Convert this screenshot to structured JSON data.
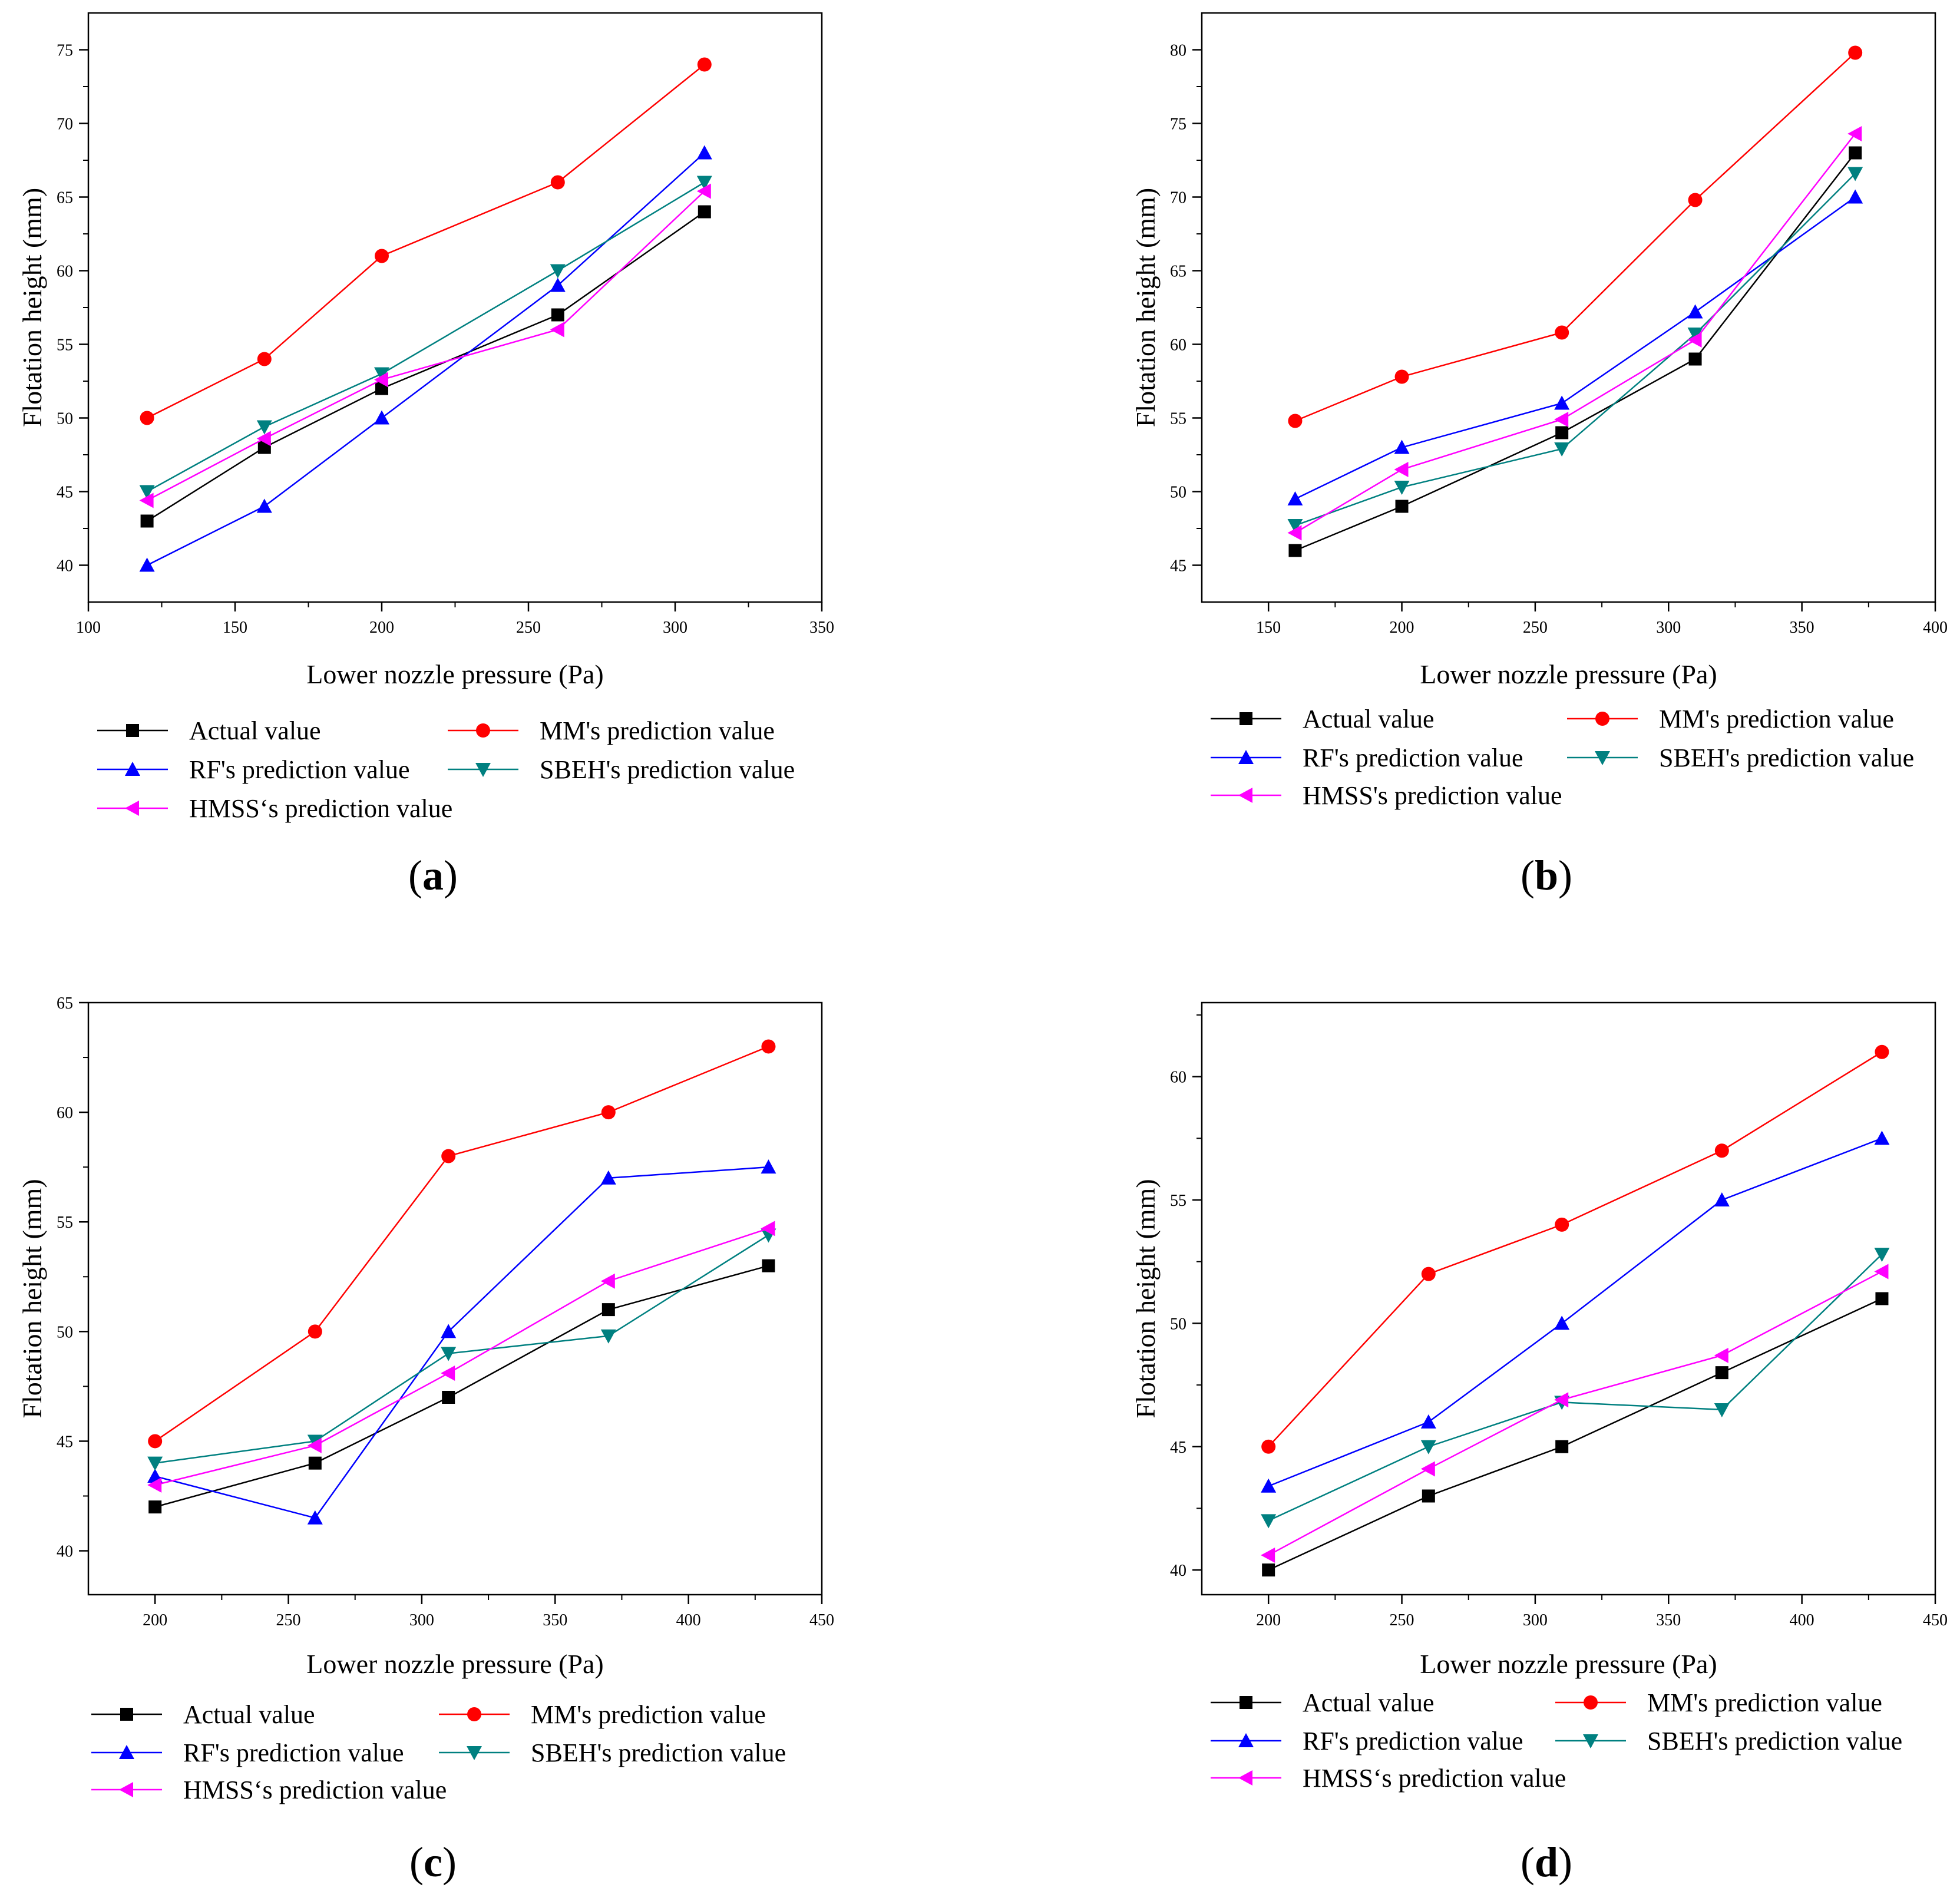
{
  "chart_data": [
    {
      "type": "line",
      "panel_label": "(a)",
      "panel_letter": "a",
      "xlabel": "Lower nozzle pressure (Pa)",
      "ylabel": "Flotation height (mm)",
      "xlim": [
        100,
        350
      ],
      "ylim": [
        37.5,
        77.5
      ],
      "xticks": [
        100,
        150,
        200,
        250,
        300,
        350
      ],
      "yticks": [
        40,
        45,
        50,
        55,
        60,
        65,
        70,
        75
      ],
      "x": [
        120,
        160,
        200,
        260,
        310
      ],
      "series": [
        {
          "name": "Actual value",
          "values": [
            43,
            48,
            52,
            57,
            64
          ]
        },
        {
          "name": "MM's prediction value",
          "values": [
            50,
            54,
            61,
            66,
            74
          ]
        },
        {
          "name": "RF's prediction value",
          "values": [
            40,
            44,
            50,
            59,
            68
          ]
        },
        {
          "name": "SBEH's prediction value",
          "values": [
            45,
            49.4,
            53,
            60,
            66
          ]
        },
        {
          "name": "HMSS‘s prediction value",
          "values": [
            44.4,
            48.6,
            52.6,
            56,
            65.4
          ]
        }
      ]
    },
    {
      "type": "line",
      "panel_label": "(b)",
      "panel_letter": "b",
      "xlabel": "Lower nozzle pressure (Pa)",
      "ylabel": "Flotation height (mm)",
      "xlim": [
        125,
        400
      ],
      "ylim": [
        42.5,
        82.5
      ],
      "xticks": [
        150,
        200,
        250,
        300,
        350,
        400
      ],
      "yticks": [
        45,
        50,
        55,
        60,
        65,
        70,
        75,
        80
      ],
      "x": [
        160,
        200,
        260,
        310,
        370
      ],
      "series": [
        {
          "name": "Actual value",
          "values": [
            46,
            49,
            54,
            59,
            73
          ]
        },
        {
          "name": "MM's prediction value",
          "values": [
            54.8,
            57.8,
            60.8,
            69.8,
            79.8
          ]
        },
        {
          "name": "RF's prediction value",
          "values": [
            49.5,
            53,
            56,
            62.2,
            70
          ]
        },
        {
          "name": "SBEH's prediction value",
          "values": [
            47.7,
            50.3,
            52.9,
            60.7,
            71.6
          ]
        },
        {
          "name": "HMSS's prediction value",
          "values": [
            47.2,
            51.5,
            54.9,
            60.3,
            74.3
          ]
        }
      ]
    },
    {
      "type": "line",
      "panel_label": "(c)",
      "panel_letter": "c",
      "xlabel": "Lower nozzle pressure (Pa)",
      "ylabel": "Flotation height (mm)",
      "xlim": [
        175,
        450
      ],
      "ylim": [
        38,
        65
      ],
      "xticks": [
        200,
        250,
        300,
        350,
        400,
        450
      ],
      "yticks": [
        40,
        45,
        50,
        55,
        60,
        65
      ],
      "x": [
        200,
        260,
        310,
        370,
        430
      ],
      "series": [
        {
          "name": "Actual value",
          "values": [
            42,
            44,
            47,
            51,
            53
          ]
        },
        {
          "name": "MM's prediction value",
          "values": [
            45,
            50,
            58,
            60,
            63
          ]
        },
        {
          "name": "RF's prediction value",
          "values": [
            43.4,
            41.5,
            50,
            57,
            57.5
          ]
        },
        {
          "name": "SBEH's prediction value",
          "values": [
            44,
            45,
            49,
            49.8,
            54.4
          ]
        },
        {
          "name": "HMSS‘s prediction value",
          "values": [
            43,
            44.8,
            48.1,
            52.3,
            54.7
          ]
        }
      ]
    },
    {
      "type": "line",
      "panel_label": "(d)",
      "panel_letter": "d",
      "xlabel": "Lower nozzle pressure (Pa)",
      "ylabel": "Flotation height (mm)",
      "xlim": [
        175,
        450
      ],
      "ylim": [
        39,
        63
      ],
      "xticks": [
        200,
        250,
        300,
        350,
        400,
        450
      ],
      "yticks": [
        40,
        45,
        50,
        55,
        60
      ],
      "x": [
        200,
        260,
        310,
        370,
        430
      ],
      "series": [
        {
          "name": "Actual value",
          "values": [
            40,
            43,
            45,
            48,
            51
          ]
        },
        {
          "name": "MM's prediction value",
          "values": [
            45,
            52,
            54,
            57,
            61
          ]
        },
        {
          "name": "RF's prediction value",
          "values": [
            43.4,
            46,
            50,
            55,
            57.5
          ]
        },
        {
          "name": "SBEH's prediction value",
          "values": [
            42,
            45,
            46.8,
            46.5,
            52.8
          ]
        },
        {
          "name": "HMSS‘s prediction value",
          "values": [
            40.6,
            44.1,
            46.9,
            48.7,
            52.1
          ]
        }
      ]
    }
  ],
  "colors": {
    "actual": "#000000",
    "mm": "#ff0000",
    "rf": "#0000ff",
    "sbeh": "#008080",
    "hmss": "#ff00ff"
  },
  "markers": [
    "square-marker",
    "circle-marker",
    "triangle-up-marker",
    "triangle-down-marker",
    "triangle-left-marker"
  ]
}
